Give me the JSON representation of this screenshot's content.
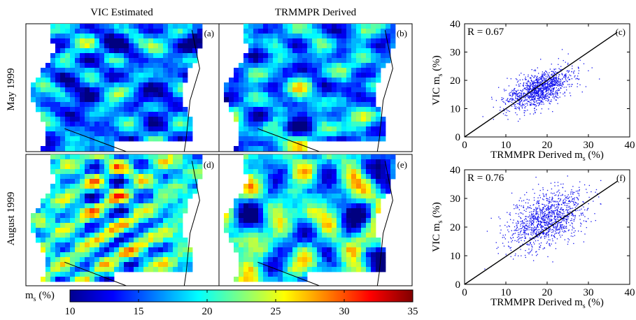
{
  "columns": {
    "left": "VIC Estimated",
    "right": "TRMMPR Derived"
  },
  "rows": {
    "top": "May 1999",
    "bottom": "August 1999"
  },
  "maps": [
    {
      "label": "(a)",
      "mean": 16,
      "amp": 6,
      "seed": 1
    },
    {
      "label": "(b)",
      "mean": 17,
      "amp": 6,
      "seed": 2
    },
    {
      "label": "(d)",
      "mean": 20,
      "amp": 9,
      "seed": 3
    },
    {
      "label": "(e)",
      "mean": 19,
      "amp": 7,
      "seed": 4
    }
  ],
  "colorbar": {
    "label": "m",
    "label_sub": "s",
    "label_unit": " (%)",
    "min": 10,
    "max": 35,
    "ticks": [
      "10",
      "15",
      "20",
      "25",
      "30",
      "35"
    ]
  },
  "chart_data": [
    {
      "type": "scatter",
      "panel": "(c)",
      "r_text": "R = 0.67",
      "xlabel": "TRMMPR Derived m",
      "ylabel": "VIC m",
      "label_sub": "s",
      "label_unit": " (%)",
      "xlim": [
        0,
        40
      ],
      "ylim": [
        0,
        40
      ],
      "xticks": [
        "0",
        "10",
        "20",
        "30",
        "40"
      ],
      "yticks": [
        "0",
        "10",
        "20",
        "30",
        "40"
      ],
      "fit_line": {
        "x": [
          0,
          37
        ],
        "y": [
          0,
          37
        ]
      },
      "points_summary": {
        "x_center": 18,
        "y_center": 17,
        "x_spread": 4,
        "y_spread": 3,
        "n": 1200
      }
    },
    {
      "type": "scatter",
      "panel": "(f)",
      "r_text": "R = 0.76",
      "xlabel": "TRMMPR Derived m",
      "ylabel": "VIC m",
      "label_sub": "s",
      "label_unit": " (%)",
      "xlim": [
        0,
        40
      ],
      "ylim": [
        0,
        40
      ],
      "xticks": [
        "0",
        "10",
        "20",
        "30",
        "40"
      ],
      "yticks": [
        "0",
        "10",
        "20",
        "30",
        "40"
      ],
      "fit_line": {
        "x": [
          0,
          37
        ],
        "y": [
          0,
          36
        ]
      },
      "points_summary": {
        "x_center": 20,
        "y_center": 23,
        "x_spread": 4.5,
        "y_spread": 4.5,
        "n": 1200
      }
    }
  ]
}
